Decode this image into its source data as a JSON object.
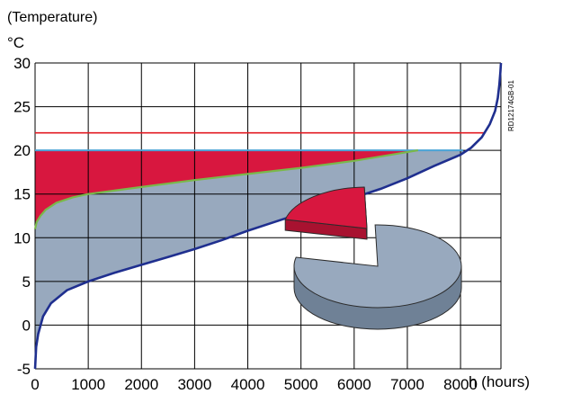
{
  "chart_data": {
    "type": "area",
    "ylabel_top": "(Temperature)",
    "yunit": "°C",
    "xlabel": "h (hours)",
    "watermark": "RD12174GB-01",
    "xlim": [
      0,
      8760
    ],
    "ylim": [
      -5,
      30
    ],
    "x_ticks": [
      0,
      1000,
      2000,
      3000,
      4000,
      5000,
      6000,
      7000,
      8000
    ],
    "y_ticks": [
      -5,
      0,
      5,
      10,
      15,
      20,
      25,
      30
    ],
    "grid": true,
    "colors": {
      "duration_curve": "#1f2f8f",
      "green_curve": "#7ab84a",
      "red_line": "#e31b23",
      "cyan_line": "#4aa3d6",
      "red_fill": "#d8173f",
      "grey_fill": "#98a9be",
      "pie_grey": "#98a9be",
      "pie_red": "#d8173f"
    },
    "series": [
      {
        "x": [
          0,
          20,
          60,
          150,
          300,
          600,
          1000,
          1500,
          2000,
          2500,
          3000,
          3500,
          4000,
          4500,
          5000,
          5500,
          6000,
          6500,
          7000,
          7500,
          8000,
          8200,
          8400,
          8550,
          8650,
          8700,
          8730,
          8750,
          8760
        ],
        "y": [
          -5,
          -2.5,
          -1,
          1,
          2.5,
          4,
          5,
          6,
          6.9,
          7.8,
          8.7,
          9.7,
          10.8,
          11.8,
          12.8,
          13.7,
          14.6,
          15.6,
          16.8,
          18.2,
          19.5,
          20.3,
          21.5,
          23,
          24.5,
          26,
          27.5,
          29,
          30
        ]
      },
      {
        "x": [
          0,
          30,
          100,
          200,
          400,
          700,
          1000,
          2000,
          3000,
          4000,
          5000,
          6000,
          7000,
          7200
        ],
        "y": [
          11,
          11.8,
          12.5,
          13.2,
          14,
          14.6,
          15,
          15.8,
          16.6,
          17.3,
          18,
          18.8,
          19.8,
          20
        ]
      },
      {
        "x": [
          0,
          8450
        ],
        "y": [
          22,
          22
        ]
      },
      {
        "x": [
          0,
          8050
        ],
        "y": [
          20,
          20
        ]
      }
    ],
    "pie": {
      "red_fraction": 0.21,
      "grey_fraction": 0.79
    }
  }
}
